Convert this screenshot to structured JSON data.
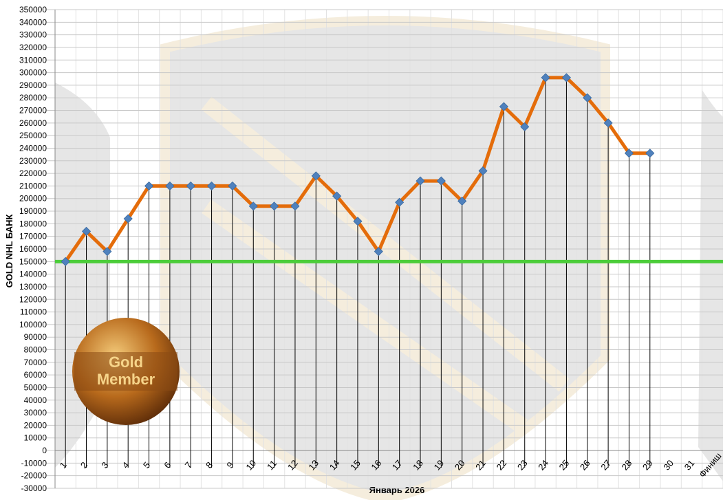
{
  "chart_data": {
    "type": "line",
    "y_label": "GOLD NHL БАНК",
    "x_label": "Январь 2026",
    "badge_text": [
      "Gold",
      "Member"
    ],
    "categories": [
      "1",
      "2",
      "3",
      "4",
      "5",
      "6",
      "7",
      "8",
      "9",
      "10",
      "11",
      "12",
      "13",
      "14",
      "15",
      "16",
      "17",
      "18",
      "19",
      "20",
      "21",
      "22",
      "23",
      "24",
      "25",
      "26",
      "27",
      "28",
      "29",
      "30",
      "31",
      "Финиш"
    ],
    "series": [
      {
        "name": "GOLD NHL БАНК",
        "color": "#e46c0a",
        "marker_color": "#4f81bd",
        "values": [
          150000,
          174000,
          158000,
          184000,
          210000,
          210000,
          210000,
          210000,
          210000,
          194000,
          194000,
          194000,
          218000,
          202000,
          182000,
          158000,
          197000,
          214000,
          214000,
          198000,
          222000,
          273000,
          257000,
          296000,
          296000,
          280000,
          260000,
          236000,
          236000,
          null,
          null,
          null
        ]
      }
    ],
    "reference_line": {
      "value": 150000,
      "color": "#4ccd3a"
    },
    "ylim": [
      -30000,
      350000
    ],
    "yticks": [
      -30000,
      -20000,
      -10000,
      0,
      10000,
      20000,
      30000,
      40000,
      50000,
      60000,
      70000,
      80000,
      90000,
      100000,
      110000,
      120000,
      130000,
      140000,
      150000,
      160000,
      170000,
      180000,
      190000,
      200000,
      210000,
      220000,
      230000,
      240000,
      250000,
      260000,
      270000,
      280000,
      290000,
      300000,
      310000,
      320000,
      330000,
      340000,
      350000
    ],
    "grid": true
  }
}
